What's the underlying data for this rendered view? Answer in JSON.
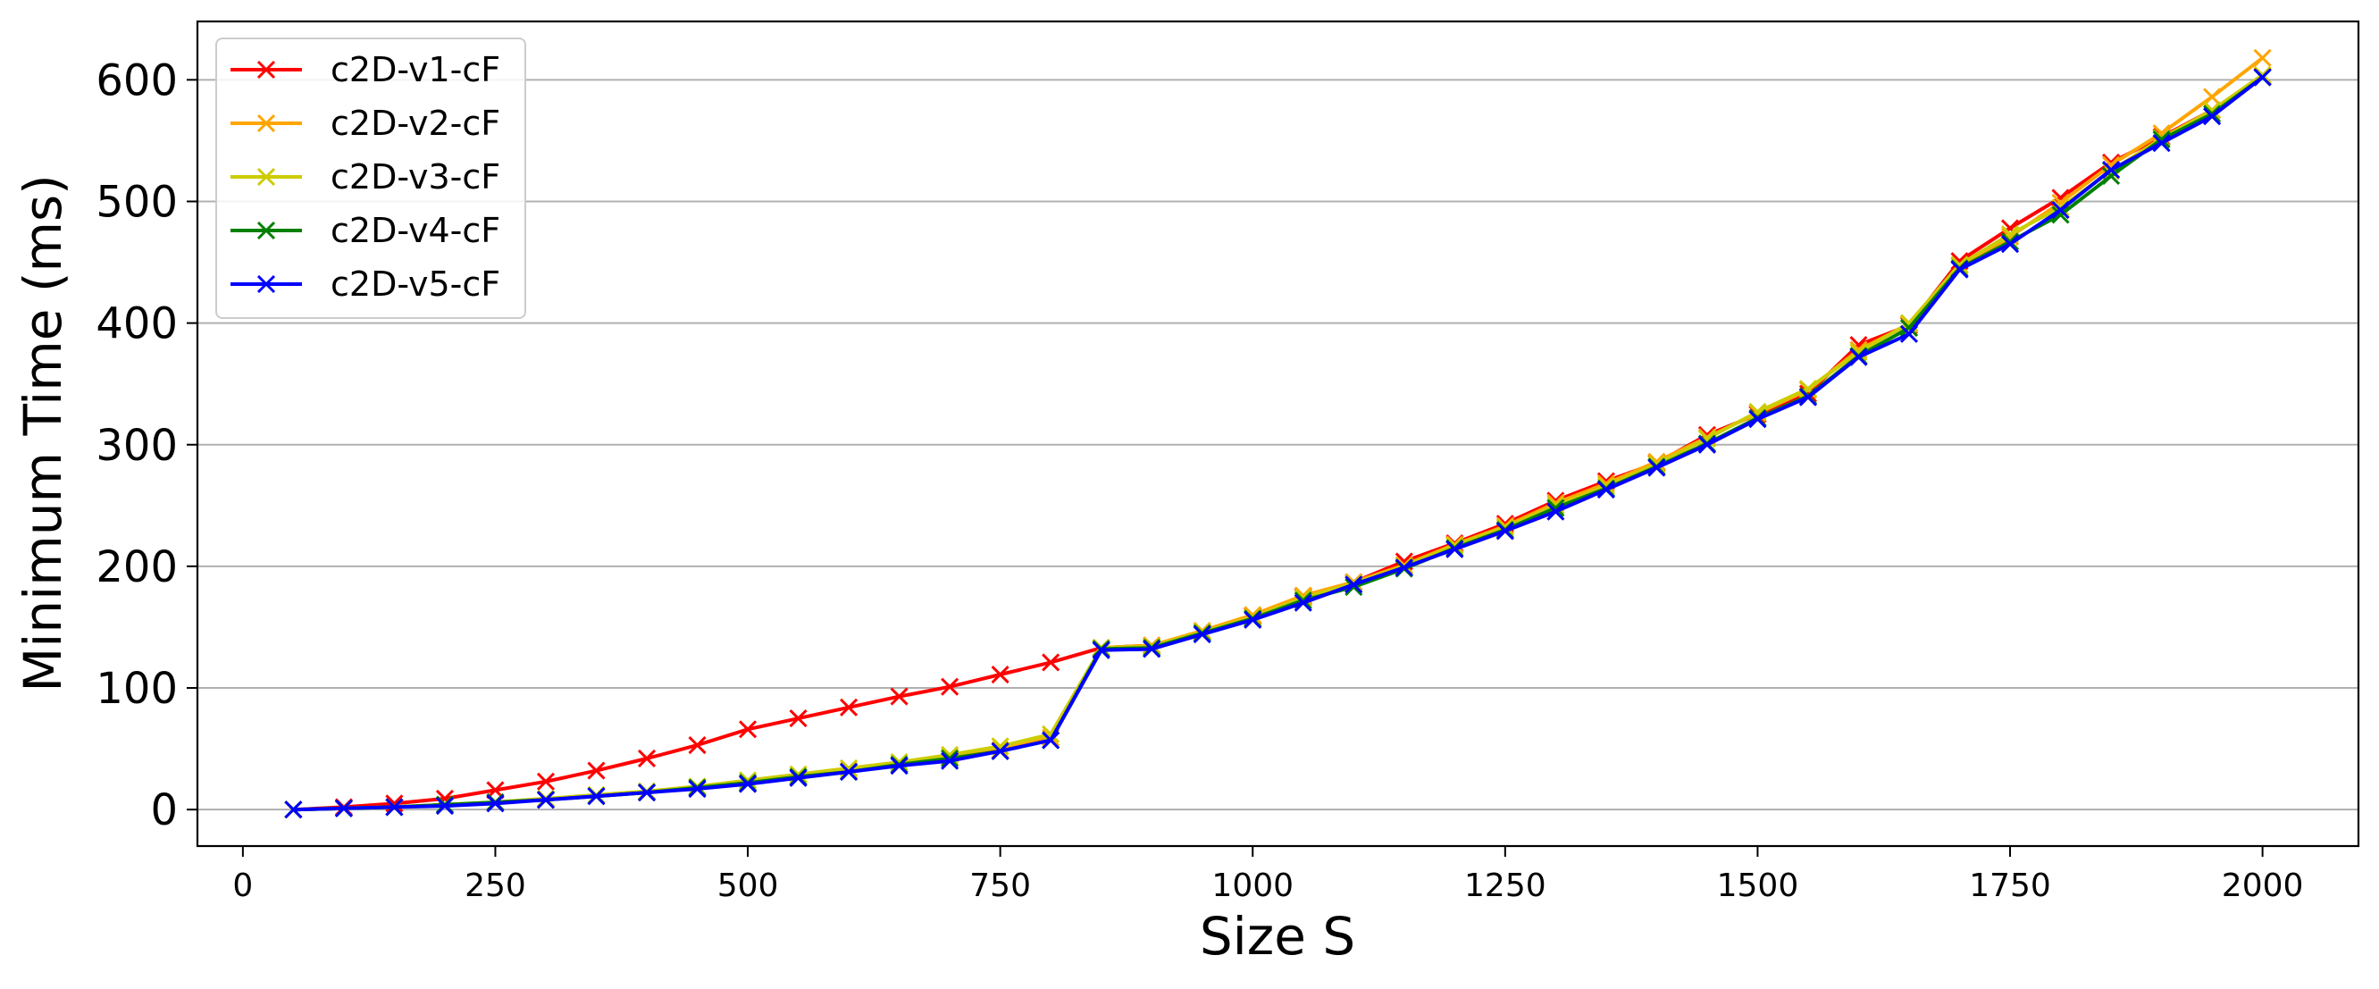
{
  "chart_data": {
    "type": "line",
    "xlabel": "Size S",
    "ylabel": "Minimum Time (ms)",
    "xlim": [
      -45,
      2095
    ],
    "ylim": [
      -30,
      648
    ],
    "x_ticks": [
      0,
      250,
      500,
      750,
      1000,
      1250,
      1500,
      1750,
      2000
    ],
    "y_ticks": [
      0,
      100,
      200,
      300,
      400,
      500,
      600
    ],
    "grid": "horizontal",
    "legend_position": "top-left",
    "marker": "x",
    "x": [
      50,
      100,
      150,
      200,
      250,
      300,
      350,
      400,
      450,
      500,
      550,
      600,
      650,
      700,
      750,
      800,
      850,
      900,
      950,
      1000,
      1050,
      1100,
      1150,
      1200,
      1250,
      1300,
      1350,
      1400,
      1450,
      1500,
      1550,
      1600,
      1650,
      1700,
      1750,
      1800,
      1850,
      1900,
      1950,
      2000
    ],
    "series": [
      {
        "name": "c2D-v1-cF",
        "color": "#ff0000",
        "values": [
          0,
          2,
          5,
          9,
          16,
          23,
          32,
          42,
          53,
          66,
          75,
          84,
          93,
          101,
          111,
          121,
          133,
          135,
          146,
          159,
          175,
          187,
          204,
          219,
          235,
          254,
          270,
          285,
          308,
          325,
          342,
          382,
          398,
          451,
          478,
          503,
          532,
          553,
          575,
          603
        ]
      },
      {
        "name": "c2D-v2-cF",
        "color": "#ffa500",
        "values": [
          0,
          1,
          2,
          4,
          6,
          9,
          11,
          14,
          18,
          22,
          27,
          32,
          37,
          43,
          49,
          59,
          133,
          135,
          147,
          160,
          176,
          187,
          201,
          218,
          233,
          252,
          268,
          286,
          306,
          326,
          345,
          378,
          399,
          447,
          471,
          499,
          530,
          556,
          586,
          618
        ]
      },
      {
        "name": "c2D-v3-cF",
        "color": "#cccc00",
        "values": [
          0,
          1,
          2,
          4,
          6,
          9,
          12,
          15,
          19,
          24,
          29,
          34,
          39,
          45,
          52,
          62,
          133,
          134,
          146,
          158,
          174,
          186,
          200,
          217,
          232,
          250,
          266,
          284,
          305,
          327,
          346,
          376,
          400,
          448,
          473,
          495,
          525,
          552,
          575,
          604
        ]
      },
      {
        "name": "c2D-v4-cF",
        "color": "#008000",
        "values": [
          0,
          1,
          2,
          4,
          6,
          8,
          11,
          14,
          18,
          22,
          27,
          31,
          37,
          42,
          48,
          57,
          132,
          133,
          145,
          157,
          172,
          183,
          198,
          215,
          230,
          248,
          264,
          282,
          301,
          322,
          340,
          373,
          396,
          445,
          467,
          489,
          521,
          551,
          572,
          602
        ]
      },
      {
        "name": "c2D-v5-cF",
        "color": "#0000ff",
        "values": [
          0,
          1,
          2,
          3,
          5,
          8,
          11,
          14,
          17,
          21,
          26,
          31,
          36,
          40,
          48,
          57,
          131,
          132,
          144,
          156,
          170,
          185,
          199,
          214,
          229,
          245,
          263,
          281,
          300,
          321,
          339,
          372,
          391,
          444,
          465,
          493,
          526,
          548,
          570,
          602
        ]
      }
    ]
  }
}
